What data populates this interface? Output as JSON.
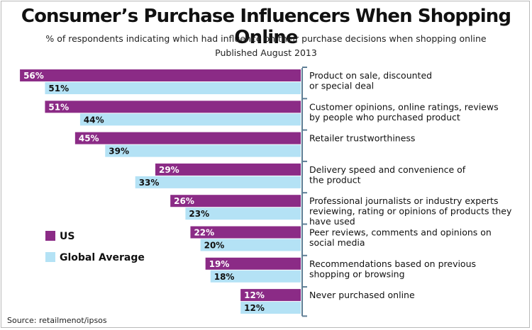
{
  "header": {
    "title": "Consumer’s Purchase Influencers When Shopping Online",
    "subtitle": "% of respondents indicating which had influence on their purchase decisions when shopping online",
    "published": "Published August 2013"
  },
  "footer": {
    "source": "Source: retailmenot/ipsos"
  },
  "colors": {
    "us": "#8b2b86",
    "global": "#b4e2f5",
    "axis": "#5f7f96"
  },
  "chart_data": {
    "type": "bar",
    "orientation": "horizontal",
    "direction": "bars extend leftward from category axis on right",
    "xlim": [
      0,
      60
    ],
    "grid": false,
    "legend_position": "left-middle",
    "value_suffix": "%",
    "categories": [
      [
        "Product on sale, discounted",
        "or special deal"
      ],
      [
        "Customer opinions, online ratings, reviews",
        "by people who purchased product"
      ],
      [
        "Retailer trustworthiness"
      ],
      [
        "Delivery speed and convenience  of",
        "the product"
      ],
      [
        "Professional journalists or industry experts",
        "reviewing, rating or opinions of products they",
        "have used"
      ],
      [
        "Peer reviews, comments and opinions on",
        "social media"
      ],
      [
        "Recommendations based on previous",
        "shopping or browsing"
      ],
      [
        "Never purchased online"
      ]
    ],
    "series": [
      {
        "name": "US",
        "values": [
          56,
          51,
          45,
          29,
          26,
          22,
          19,
          12
        ]
      },
      {
        "name": "Global Average",
        "values": [
          51,
          44,
          39,
          33,
          23,
          20,
          18,
          12
        ]
      }
    ]
  }
}
